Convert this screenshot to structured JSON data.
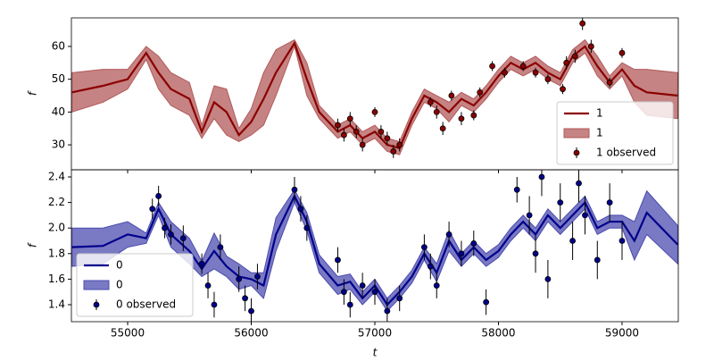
{
  "chart_data": [
    {
      "type": "line",
      "ylabel": "f",
      "legend": "lower right",
      "xlim": [
        54545,
        59455
      ],
      "xticks": [
        55000,
        56000,
        57000,
        58000,
        59000
      ],
      "ylim": [
        22.4,
        68.7
      ],
      "yticks": [
        30,
        40,
        50,
        60
      ],
      "x": [
        54550,
        54800,
        55000,
        55150,
        55250,
        55350,
        55500,
        55600,
        55700,
        55800,
        55900,
        56000,
        56100,
        56200,
        56350,
        56450,
        56550,
        56700,
        56800,
        56900,
        57000,
        57100,
        57200,
        57300,
        57400,
        57500,
        57600,
        57700,
        57800,
        57900,
        58000,
        58100,
        58200,
        58300,
        58400,
        58500,
        58600,
        58700,
        58800,
        58900,
        59000,
        59100,
        59200,
        59450
      ],
      "series": [
        {
          "name": "1",
          "type": "line",
          "color": "#8b0000",
          "values": [
            46,
            48,
            50,
            58,
            52,
            47,
            44,
            34,
            43,
            40,
            33,
            37,
            44,
            52,
            61,
            50,
            40,
            34,
            36,
            32,
            34,
            30,
            29,
            38,
            45,
            43,
            40,
            44,
            42,
            46,
            51,
            55,
            53,
            55,
            52,
            50,
            57,
            60,
            54,
            49,
            53,
            48,
            46,
            45
          ]
        },
        {
          "name": "1",
          "type": "band",
          "color": "#b35a5a",
          "lower": [
            40,
            43,
            47,
            56,
            47,
            42,
            39,
            32,
            38,
            33,
            31,
            33,
            36,
            45,
            60,
            45,
            38,
            32,
            34,
            30,
            32,
            28,
            27,
            36,
            43,
            41,
            37,
            42,
            40,
            44,
            49,
            53,
            51,
            53,
            50,
            48,
            55,
            58,
            51,
            47,
            51,
            43,
            39,
            38
          ],
          "upper": [
            52,
            53,
            53,
            60,
            57,
            52,
            49,
            36,
            48,
            47,
            35,
            41,
            52,
            59,
            62,
            55,
            42,
            36,
            38,
            34,
            36,
            32,
            31,
            40,
            47,
            45,
            43,
            46,
            44,
            48,
            53,
            57,
            55,
            57,
            54,
            52,
            59,
            62,
            57,
            51,
            55,
            53,
            53,
            52
          ]
        },
        {
          "name": "1 observed",
          "type": "errorbar",
          "color": "#8b0000",
          "x": [
            56700,
            56750,
            56800,
            56850,
            56900,
            57000,
            57050,
            57100,
            57150,
            57200,
            57450,
            57500,
            57550,
            57620,
            57700,
            57800,
            57850,
            57950,
            58050,
            58200,
            58300,
            58400,
            58520,
            58550,
            58620,
            58680,
            58750,
            58900,
            59000
          ],
          "values": [
            36,
            33,
            38,
            34,
            30,
            40,
            34,
            32,
            28,
            30,
            43,
            40,
            35,
            45,
            38,
            39,
            46,
            54,
            52,
            54,
            52,
            50,
            47,
            55,
            57,
            67,
            60,
            49,
            58
          ],
          "errors": [
            2,
            2,
            2,
            2,
            2,
            1.5,
            2,
            2,
            2,
            2,
            1.5,
            2,
            2,
            1.5,
            2,
            1.5,
            1.5,
            1.5,
            1.5,
            1.5,
            1.5,
            1.5,
            1.5,
            2,
            2,
            2,
            2,
            1.5,
            1.5
          ]
        }
      ]
    },
    {
      "type": "line",
      "ylabel": "f",
      "xlabel": "t",
      "legend": "lower left",
      "xlim": [
        54545,
        59455
      ],
      "xticks": [
        55000,
        56000,
        57000,
        58000,
        59000
      ],
      "ylim": [
        1.267,
        2.456
      ],
      "yticks": [
        1.4,
        1.6,
        1.8,
        {
          "value": 2,
          "label": "2.0"
        },
        2.2,
        2.4
      ],
      "x": [
        54550,
        54800,
        55000,
        55150,
        55250,
        55350,
        55500,
        55600,
        55700,
        55800,
        55900,
        56000,
        56100,
        56200,
        56350,
        56450,
        56550,
        56700,
        56800,
        56900,
        57000,
        57100,
        57200,
        57300,
        57400,
        57500,
        57600,
        57700,
        57800,
        57900,
        58000,
        58100,
        58200,
        58300,
        58400,
        58500,
        58600,
        58700,
        58800,
        58900,
        59000,
        59100,
        59200,
        59450
      ],
      "series": [
        {
          "name": "0",
          "type": "line",
          "color": "#00008b",
          "values": [
            1.85,
            1.86,
            1.95,
            1.92,
            2.15,
            1.95,
            1.82,
            1.68,
            1.82,
            1.7,
            1.62,
            1.6,
            1.55,
            1.95,
            2.25,
            2.05,
            1.72,
            1.55,
            1.58,
            1.45,
            1.55,
            1.4,
            1.5,
            1.62,
            1.8,
            1.65,
            1.9,
            1.75,
            1.85,
            1.75,
            1.82,
            1.95,
            2.05,
            1.95,
            2.1,
            2,
            2.1,
            2.2,
            2,
            2.05,
            2.05,
            1.9,
            2.12,
            1.87
          ]
        },
        {
          "name": "0",
          "type": "band",
          "color": "#4c4cb0",
          "lower": [
            1.7,
            1.72,
            1.85,
            1.88,
            2.1,
            1.85,
            1.72,
            1.62,
            1.68,
            1.62,
            1.52,
            1.55,
            1.45,
            1.82,
            2.2,
            1.98,
            1.65,
            1.48,
            1.52,
            1.4,
            1.5,
            1.35,
            1.45,
            1.57,
            1.75,
            1.58,
            1.82,
            1.7,
            1.8,
            1.7,
            1.77,
            1.9,
            2,
            1.9,
            2.05,
            1.95,
            2.05,
            2.15,
            1.95,
            2,
            2,
            1.75,
            1.95,
            1.72
          ],
          "upper": [
            2,
            2,
            2.05,
            1.96,
            2.2,
            2.05,
            1.92,
            1.74,
            1.96,
            1.78,
            1.72,
            1.65,
            1.65,
            2.08,
            2.3,
            2.12,
            1.79,
            1.62,
            1.64,
            1.5,
            1.6,
            1.45,
            1.55,
            1.67,
            1.85,
            1.72,
            1.98,
            1.8,
            1.9,
            1.8,
            1.87,
            2,
            2.1,
            2,
            2.15,
            2.05,
            2.15,
            2.25,
            2.05,
            2.1,
            2.1,
            2.05,
            2.29,
            2.02
          ]
        },
        {
          "name": "0 observed",
          "type": "errorbar",
          "color": "#00008b",
          "x": [
            55200,
            55250,
            55300,
            55350,
            55450,
            55600,
            55650,
            55700,
            55750,
            55900,
            55950,
            56000,
            56050,
            56350,
            56400,
            56450,
            56700,
            56750,
            56800,
            56900,
            57000,
            57100,
            57200,
            57400,
            57450,
            57500,
            57600,
            57700,
            57800,
            57900,
            58150,
            58250,
            58300,
            58350,
            58400,
            58500,
            58600,
            58650,
            58700,
            58800,
            58900,
            59000
          ],
          "values": [
            2.15,
            2.25,
            2,
            1.95,
            1.92,
            1.72,
            1.55,
            1.4,
            1.85,
            1.6,
            1.45,
            1.35,
            1.62,
            2.3,
            2.15,
            2,
            1.75,
            1.5,
            1.4,
            1.55,
            1.5,
            1.35,
            1.45,
            1.85,
            1.7,
            1.55,
            1.95,
            1.8,
            1.88,
            1.42,
            2.3,
            2.1,
            1.8,
            2.4,
            1.6,
            2.2,
            1.9,
            2.35,
            2.1,
            1.75,
            2.2,
            1.9
          ],
          "errors": [
            0.08,
            0.08,
            0.08,
            0.08,
            0.1,
            0.08,
            0.1,
            0.1,
            0.1,
            0.1,
            0.1,
            0.1,
            0.1,
            0.1,
            0.1,
            0.1,
            0.1,
            0.1,
            0.1,
            0.1,
            0.1,
            0.1,
            0.1,
            0.1,
            0.1,
            0.1,
            0.1,
            0.1,
            0.1,
            0.1,
            0.1,
            0.15,
            0.15,
            0.15,
            0.15,
            0.15,
            0.15,
            0.15,
            0.15,
            0.15,
            0.15,
            0.15
          ]
        }
      ]
    }
  ]
}
